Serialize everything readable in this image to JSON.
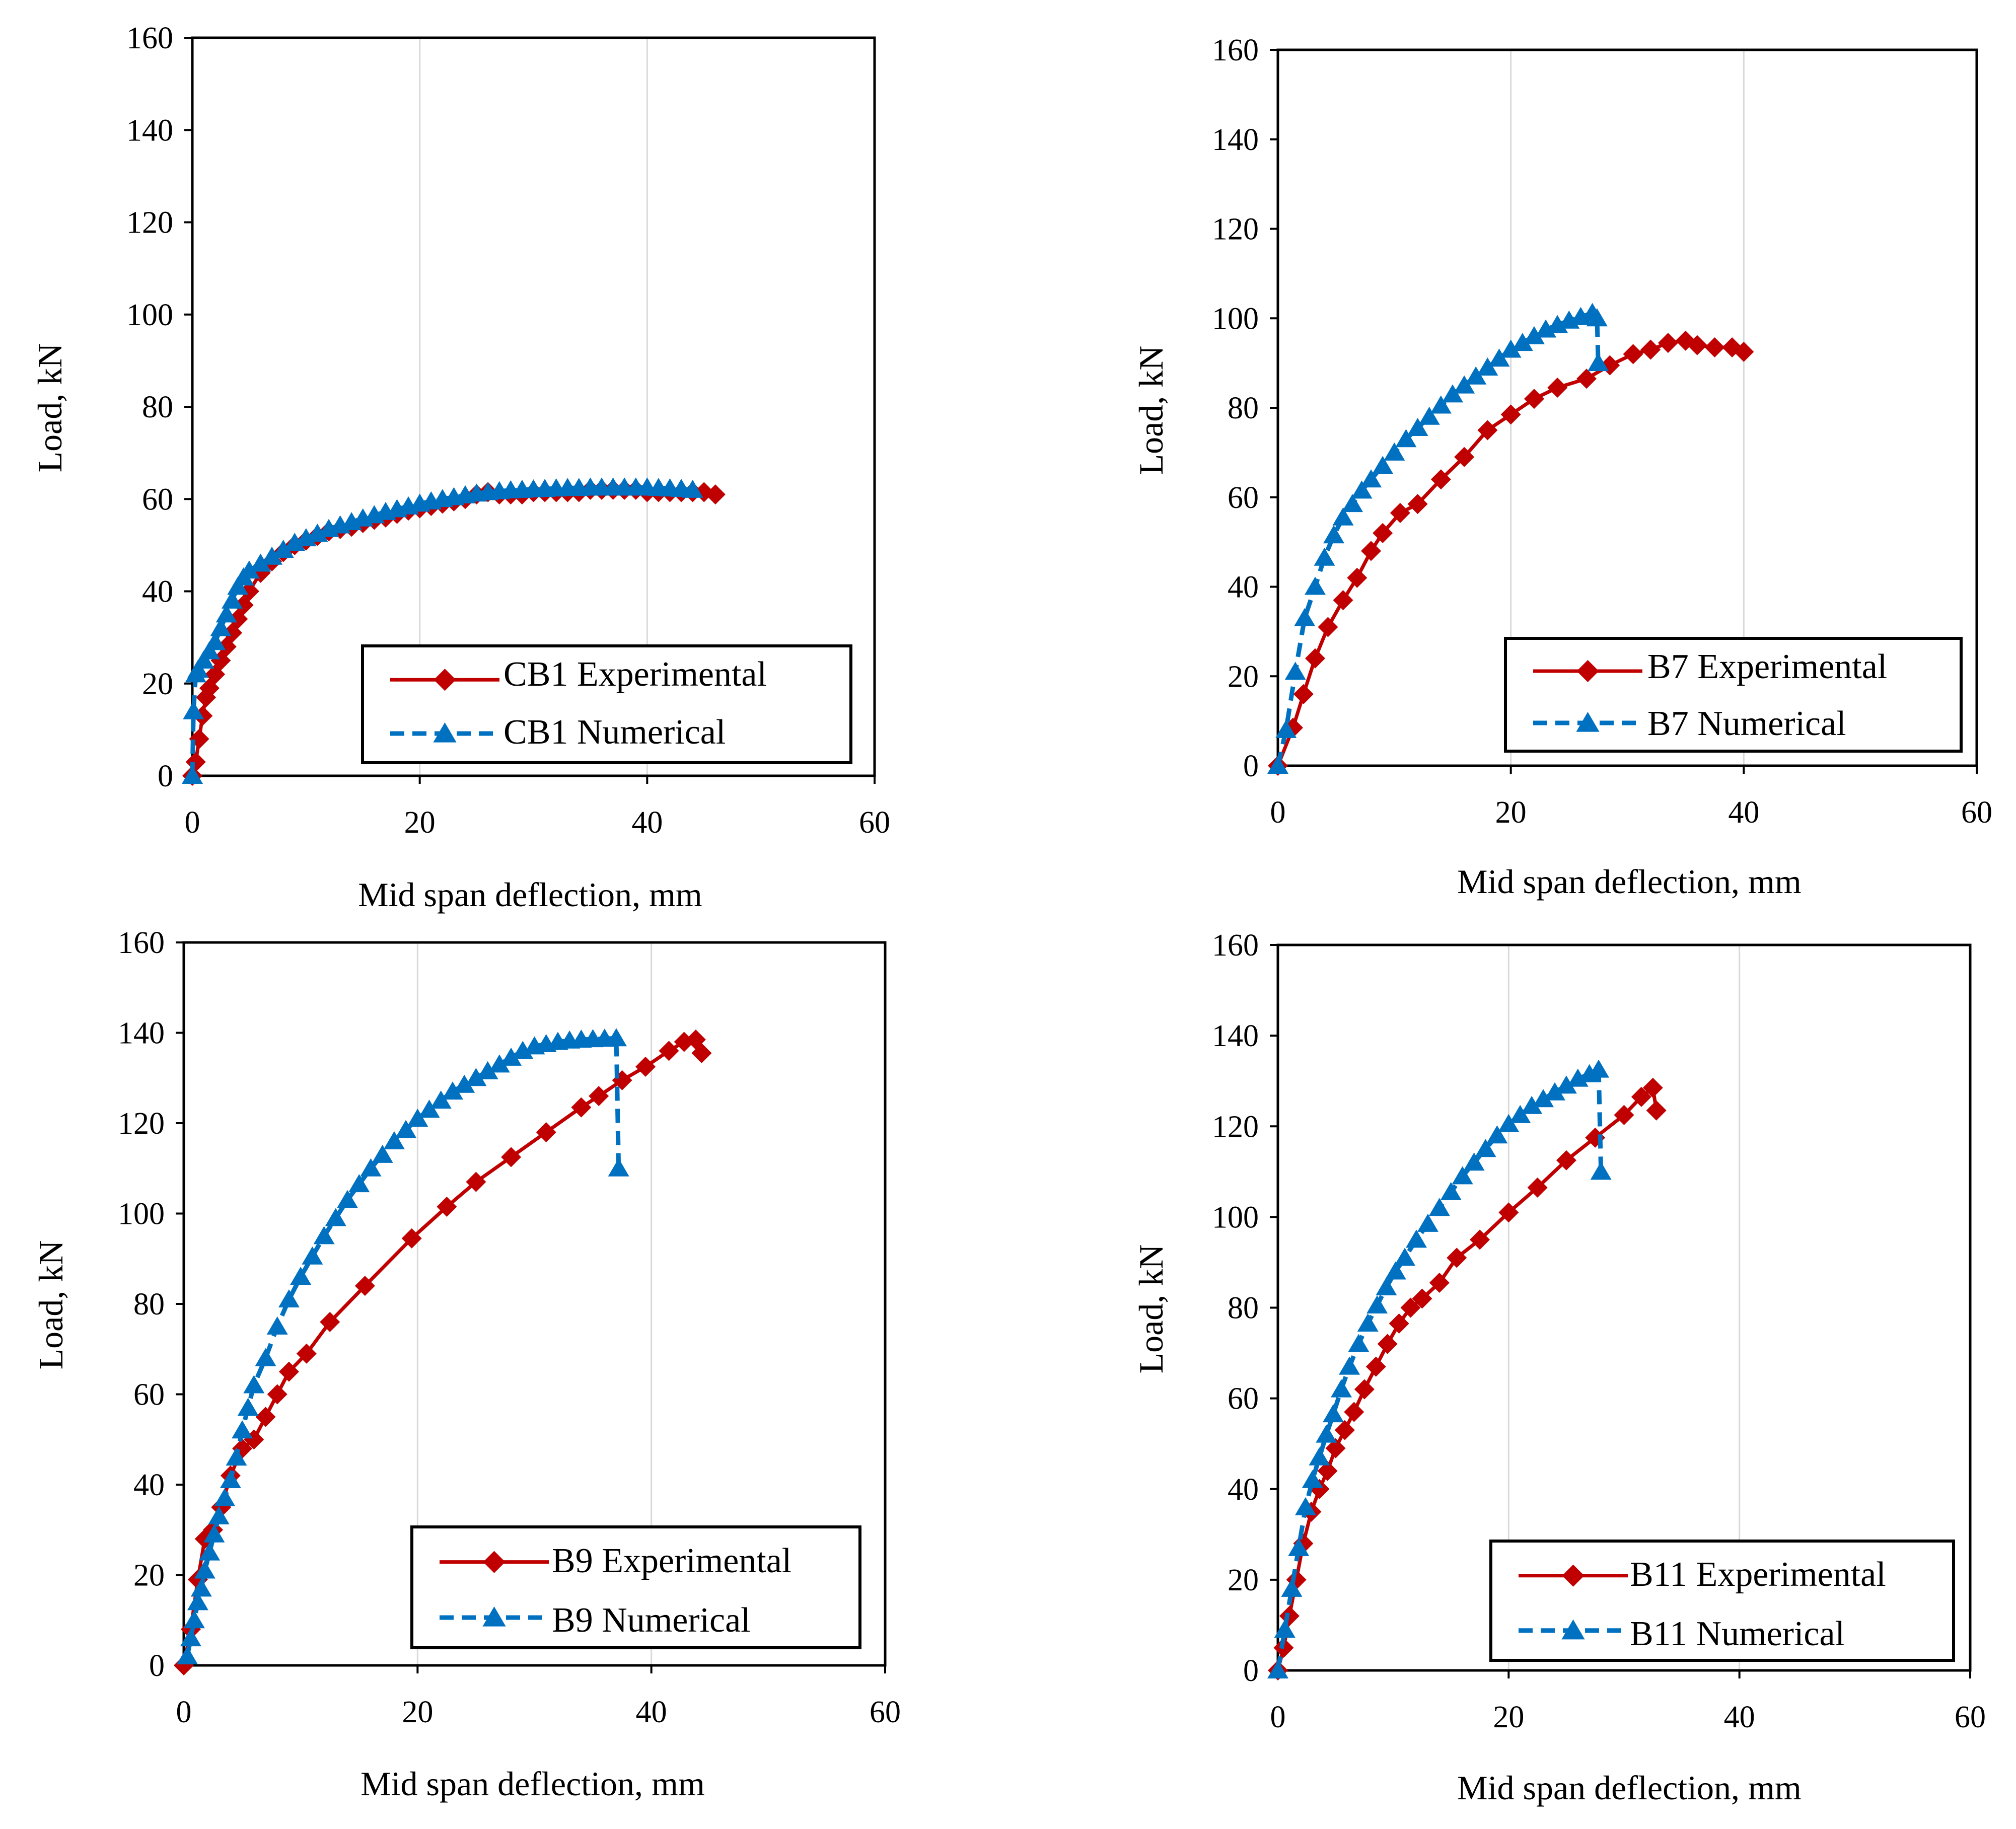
{
  "colors": {
    "experimental": "#C00000",
    "numerical": "#0070C0",
    "gridline": "#D9D9D9",
    "frame": "#000000"
  },
  "chart_data": [
    {
      "type": "line",
      "title": "",
      "xlabel": "Mid span deflection, mm",
      "ylabel": "Load,  kN",
      "xlim": [
        0,
        60
      ],
      "ylim": [
        0,
        160
      ],
      "xticks": [
        0,
        20,
        40,
        60
      ],
      "yticks": [
        0,
        20,
        40,
        60,
        80,
        100,
        120,
        140,
        160
      ],
      "grid": "vertical",
      "legend_position": "bottom-right",
      "series": [
        {
          "name": "CB1 Experimental",
          "color": "#C00000",
          "marker": "diamond",
          "line": "solid",
          "x": [
            0,
            0.3,
            0.6,
            0.9,
            1.2,
            1.5,
            2,
            2.5,
            3,
            3.5,
            4,
            4.5,
            5,
            6,
            7,
            8,
            9,
            10,
            11,
            12,
            13,
            14,
            15,
            16,
            17,
            18,
            19,
            20,
            21,
            22,
            23,
            24,
            25,
            26,
            27,
            28,
            29,
            30,
            31,
            32,
            33,
            34,
            35,
            36,
            37,
            38,
            39,
            40,
            41,
            42,
            43,
            44,
            45,
            46
          ],
          "y": [
            0,
            3,
            8,
            13,
            17,
            19,
            22,
            25,
            28,
            31,
            34,
            37,
            40,
            44,
            46.5,
            48.5,
            50,
            51,
            52,
            53,
            53.5,
            54,
            54.8,
            55.5,
            56,
            56.8,
            57.5,
            58,
            58.5,
            59,
            59.5,
            60,
            61,
            61.5,
            61,
            61,
            61,
            61.5,
            61.5,
            61.5,
            61.5,
            61.5,
            62,
            62,
            62,
            62,
            62,
            61.5,
            61.5,
            61.5,
            61.5,
            61.5,
            61.5,
            61
          ]
        },
        {
          "name": "CB1 Numerical",
          "color": "#0070C0",
          "marker": "triangle",
          "line": "dashed",
          "x": [
            0,
            0.1,
            0.3,
            0.5,
            1,
            1.5,
            2,
            2.5,
            3,
            3.5,
            4,
            4.5,
            5,
            6,
            7,
            8,
            9,
            10,
            11,
            12,
            13,
            14,
            15,
            16,
            17,
            18,
            19,
            20,
            21,
            22,
            23,
            24,
            25,
            26,
            27,
            28,
            29,
            30,
            31,
            32,
            33,
            34,
            35,
            36,
            37,
            38,
            39,
            40,
            41,
            42,
            43,
            44
          ],
          "y": [
            0,
            14,
            22,
            23,
            25,
            27,
            29,
            32,
            35,
            38,
            41,
            43,
            44.5,
            46,
            47.5,
            49,
            50.5,
            51.5,
            52.5,
            53.5,
            54.3,
            55,
            55.8,
            56.5,
            57.2,
            57.8,
            58.4,
            59,
            59.5,
            60,
            60.4,
            60.8,
            61.2,
            61.5,
            61.7,
            61.9,
            62,
            62.1,
            62.2,
            62.3,
            62.4,
            62.4,
            62.5,
            62.5,
            62.5,
            62.5,
            62.5,
            62.5,
            62.4,
            62.3,
            62.2,
            62
          ]
        }
      ]
    },
    {
      "type": "line",
      "title": "",
      "xlabel": "Mid span deflection, mm",
      "ylabel": "Load,  kN",
      "xlim": [
        0,
        60
      ],
      "ylim": [
        0,
        160
      ],
      "xticks": [
        0,
        20,
        40,
        60
      ],
      "yticks": [
        0,
        20,
        40,
        60,
        80,
        100,
        120,
        140,
        160
      ],
      "grid": "vertical",
      "legend_position": "bottom-right",
      "series": [
        {
          "name": "B7 Experimental",
          "color": "#C00000",
          "marker": "diamond",
          "line": "solid",
          "x": [
            0,
            1.3,
            2.2,
            3.2,
            4.3,
            5.6,
            6.8,
            8,
            9,
            10.5,
            12,
            14,
            16,
            18,
            20,
            22,
            24,
            26.5,
            28.5,
            30.5,
            32,
            33.5,
            35,
            36,
            37.5,
            39,
            40
          ],
          "y": [
            0,
            8.5,
            16,
            24,
            31,
            37,
            42,
            48,
            52,
            56.5,
            58.5,
            64,
            69,
            75,
            78.5,
            82,
            84.5,
            86.5,
            89.5,
            92,
            93,
            94.5,
            95,
            94,
            93.5,
            93.5,
            92.5
          ]
        },
        {
          "name": "B7 Numerical",
          "color": "#0070C0",
          "marker": "triangle",
          "line": "dashed",
          "x": [
            0,
            0.7,
            1.5,
            2.3,
            3.2,
            4,
            4.8,
            5.6,
            6.4,
            7.2,
            8,
            9,
            10,
            11,
            12,
            13,
            14,
            15,
            16,
            17,
            18,
            19,
            20,
            21,
            22,
            23,
            24,
            25,
            26,
            27,
            27.4,
            27.5
          ],
          "y": [
            0,
            8,
            21,
            33,
            40,
            46.5,
            51.5,
            55.5,
            58.5,
            61.5,
            64,
            67,
            70,
            73,
            75.5,
            78,
            80.5,
            83,
            85,
            87,
            89,
            91,
            93,
            94.5,
            96,
            97.5,
            98.5,
            99.5,
            100.3,
            101.2,
            100,
            90
          ]
        }
      ]
    },
    {
      "type": "line",
      "title": "",
      "xlabel": "Mid span deflection, mm",
      "ylabel": "Load,  kN",
      "xlim": [
        0,
        60
      ],
      "ylim": [
        0,
        160
      ],
      "xticks": [
        0,
        20,
        40,
        60
      ],
      "yticks": [
        0,
        20,
        40,
        60,
        80,
        100,
        120,
        140,
        160
      ],
      "grid": "vertical",
      "legend_position": "bottom-right",
      "series": [
        {
          "name": "B9 Experimental",
          "color": "#C00000",
          "marker": "diamond",
          "line": "solid",
          "x": [
            0,
            0.6,
            1.2,
            1.8,
            2.5,
            3.2,
            4,
            5,
            6,
            7,
            8,
            9,
            10.5,
            12.5,
            15.5,
            19.5,
            22.5,
            25,
            28,
            31,
            34,
            35.5,
            37.5,
            39.5,
            41.5,
            42.8,
            43.8,
            44.3
          ],
          "y": [
            0,
            8,
            19,
            28,
            30,
            35,
            42,
            48,
            50,
            55,
            60,
            65,
            69,
            76,
            84,
            94.5,
            101.5,
            107,
            112.5,
            118,
            123.5,
            126,
            129.5,
            132.5,
            136,
            138,
            138.5,
            135.5
          ]
        },
        {
          "name": "B9 Numerical",
          "color": "#0070C0",
          "marker": "triangle",
          "line": "dashed",
          "x": [
            0.3,
            0.6,
            0.9,
            1.2,
            1.5,
            1.8,
            2.2,
            2.6,
            3,
            3.5,
            4,
            4.5,
            5,
            5.5,
            6,
            7,
            8,
            9,
            10,
            11,
            12,
            13,
            14,
            15,
            16,
            17,
            18,
            19,
            20,
            21,
            22,
            23,
            24,
            25,
            26,
            27,
            28,
            29,
            30,
            31,
            32,
            33,
            34,
            35,
            36,
            37,
            37.2
          ],
          "y": [
            2,
            6,
            10,
            14,
            17,
            21,
            25,
            29,
            33,
            37,
            41,
            46,
            52,
            57,
            62,
            68,
            75,
            81,
            86,
            90.5,
            95,
            99,
            103,
            106.5,
            110,
            113,
            116,
            118.5,
            121,
            123,
            125,
            127,
            128.5,
            130,
            131.5,
            133,
            134.5,
            136,
            137,
            137.5,
            138,
            138.3,
            138.5,
            138.6,
            138.7,
            138.8,
            110
          ]
        }
      ]
    },
    {
      "type": "line",
      "title": "",
      "xlabel": "Mid span deflection, mm",
      "ylabel": "Load,  kN",
      "xlim": [
        0,
        60
      ],
      "ylim": [
        0,
        160
      ],
      "xticks": [
        0,
        20,
        40,
        60
      ],
      "yticks": [
        0,
        20,
        40,
        60,
        80,
        100,
        120,
        140,
        160
      ],
      "grid": "vertical",
      "legend_position": "bottom-right",
      "series": [
        {
          "name": "B11 Experimental",
          "color": "#C00000",
          "marker": "diamond",
          "line": "solid",
          "x": [
            0,
            0.5,
            1,
            1.6,
            2.2,
            2.9,
            3.6,
            4.3,
            5,
            5.8,
            6.6,
            7.5,
            8.5,
            9.5,
            10.5,
            11.5,
            12.5,
            14,
            15.5,
            17.5,
            20,
            22.5,
            25,
            27.5,
            30,
            31.5,
            32.5,
            32.8
          ],
          "y": [
            0,
            5,
            12,
            20,
            28,
            35,
            40,
            44,
            49,
            53,
            57,
            62,
            67,
            72,
            76.5,
            80,
            82,
            85.5,
            91,
            95,
            101,
            106.5,
            112.5,
            117.5,
            122.5,
            126.5,
            128.5,
            123.5
          ]
        },
        {
          "name": "B11 Numerical",
          "color": "#0070C0",
          "marker": "triangle",
          "line": "dashed",
          "x": [
            0,
            0.6,
            1.2,
            1.8,
            2.4,
            3,
            3.6,
            4.2,
            4.8,
            5.5,
            6.2,
            7,
            7.8,
            8.6,
            9.4,
            10.2,
            11,
            12,
            13,
            14,
            15,
            16,
            17,
            18,
            19,
            20,
            21,
            22,
            23,
            24,
            25,
            26,
            27,
            27.8,
            28
          ],
          "y": [
            0,
            9,
            18,
            27,
            36,
            42,
            47,
            52,
            56.5,
            62,
            67,
            72,
            76.5,
            80.5,
            84.5,
            88,
            91,
            95,
            98.5,
            102,
            105.5,
            109,
            112,
            115,
            118,
            120.5,
            122.5,
            124.5,
            126,
            127.5,
            129,
            130.5,
            131.5,
            132.5,
            110
          ]
        }
      ]
    }
  ]
}
